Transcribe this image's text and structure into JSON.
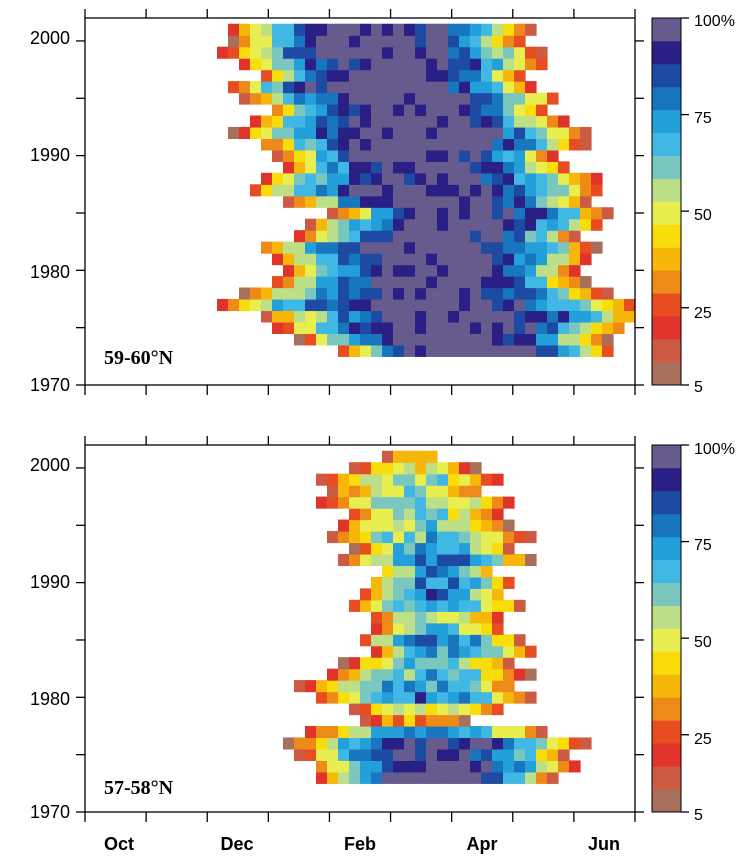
{
  "chart_data": [
    {
      "type": "heatmap",
      "panel_label": "59-60°N",
      "x_ticks": [
        "Oct",
        "Dec",
        "Feb",
        "Apr",
        "Jun"
      ],
      "y_ticks": [
        "1970",
        "1980",
        "1990",
        "2000"
      ],
      "ylim": [
        1970,
        2002
      ],
      "colorbar": {
        "ticks": [
          "5",
          "25",
          "50",
          "75",
          "100%"
        ],
        "range": [
          5,
          100
        ]
      },
      "rows": [
        {
          "year": 1973,
          "start": 4.1,
          "end": 8.7,
          "peak": 100
        },
        {
          "year": 1974,
          "start": 3.5,
          "end": 8.6,
          "peak": 98
        },
        {
          "year": 1975,
          "start": 3.1,
          "end": 8.9,
          "peak": 97
        },
        {
          "year": 1976,
          "start": 2.9,
          "end": 9.3,
          "peak": 96
        },
        {
          "year": 1977,
          "start": 2.1,
          "end": 9.1,
          "peak": 95
        },
        {
          "year": 1978,
          "start": 2.6,
          "end": 8.6,
          "peak": 94
        },
        {
          "year": 1979,
          "start": 3.0,
          "end": 8.2,
          "peak": 95
        },
        {
          "year": 1980,
          "start": 3.2,
          "end": 8.1,
          "peak": 96
        },
        {
          "year": 1981,
          "start": 3.0,
          "end": 8.3,
          "peak": 97
        },
        {
          "year": 1982,
          "start": 2.8,
          "end": 8.4,
          "peak": 98
        },
        {
          "year": 1983,
          "start": 3.4,
          "end": 8.1,
          "peak": 97
        },
        {
          "year": 1984,
          "start": 3.6,
          "end": 8.5,
          "peak": 95
        },
        {
          "year": 1985,
          "start": 4.0,
          "end": 8.6,
          "peak": 94
        },
        {
          "year": 1986,
          "start": 3.3,
          "end": 8.2,
          "peak": 97
        },
        {
          "year": 1987,
          "start": 2.6,
          "end": 8.5,
          "peak": 96
        },
        {
          "year": 1988,
          "start": 2.8,
          "end": 8.4,
          "peak": 92
        },
        {
          "year": 1989,
          "start": 3.2,
          "end": 8.0,
          "peak": 95
        },
        {
          "year": 1990,
          "start": 3.1,
          "end": 7.8,
          "peak": 97
        },
        {
          "year": 1991,
          "start": 2.8,
          "end": 8.2,
          "peak": 98
        },
        {
          "year": 1992,
          "start": 2.4,
          "end": 8.3,
          "peak": 96
        },
        {
          "year": 1993,
          "start": 2.7,
          "end": 7.9,
          "peak": 97
        },
        {
          "year": 1994,
          "start": 3.0,
          "end": 7.6,
          "peak": 98
        },
        {
          "year": 1995,
          "start": 2.6,
          "end": 7.8,
          "peak": 100
        },
        {
          "year": 1996,
          "start": 2.3,
          "end": 7.4,
          "peak": 97
        },
        {
          "year": 1997,
          "start": 2.8,
          "end": 7.2,
          "peak": 98
        },
        {
          "year": 1998,
          "start": 2.5,
          "end": 7.6,
          "peak": 96
        },
        {
          "year": 1999,
          "start": 2.2,
          "end": 7.5,
          "peak": 95
        },
        {
          "year": 2000,
          "start": 2.4,
          "end": 7.2,
          "peak": 96
        },
        {
          "year": 2001,
          "start": 2.3,
          "end": 7.3,
          "peak": 92
        }
      ]
    },
    {
      "type": "heatmap",
      "panel_label": "57-58°N",
      "x_ticks": [
        "Oct",
        "Dec",
        "Feb",
        "Apr",
        "Jun"
      ],
      "y_ticks": [
        "1970",
        "1980",
        "1990",
        "2000"
      ],
      "ylim": [
        1970,
        2002
      ],
      "colorbar": {
        "ticks": [
          "5",
          "25",
          "50",
          "75",
          "100%"
        ],
        "range": [
          5,
          100
        ]
      },
      "rows": [
        {
          "year": 1973,
          "start": 3.8,
          "end": 7.7,
          "peak": 95
        },
        {
          "year": 1974,
          "start": 3.7,
          "end": 8.1,
          "peak": 92
        },
        {
          "year": 1975,
          "start": 3.5,
          "end": 7.9,
          "peak": 90
        },
        {
          "year": 1976,
          "start": 3.3,
          "end": 8.2,
          "peak": 88
        },
        {
          "year": 1977,
          "start": 3.6,
          "end": 7.6,
          "peak": 70
        },
        {
          "year": 1978,
          "start": 4.5,
          "end": 6.3,
          "peak": 30
        },
        {
          "year": 1979,
          "start": 4.3,
          "end": 6.9,
          "peak": 50
        },
        {
          "year": 1980,
          "start": 3.7,
          "end": 7.3,
          "peak": 72
        },
        {
          "year": 1981,
          "start": 3.5,
          "end": 7.1,
          "peak": 68
        },
        {
          "year": 1982,
          "start": 3.9,
          "end": 7.3,
          "peak": 62
        },
        {
          "year": 1983,
          "start": 4.2,
          "end": 7.0,
          "peak": 60
        },
        {
          "year": 1984,
          "start": 4.6,
          "end": 7.4,
          "peak": 68
        },
        {
          "year": 1985,
          "start": 4.4,
          "end": 7.2,
          "peak": 74
        },
        {
          "year": 1986,
          "start": 4.7,
          "end": 6.9,
          "peak": 60
        },
        {
          "year": 1987,
          "start": 4.6,
          "end": 6.8,
          "peak": 56
        },
        {
          "year": 1988,
          "start": 4.3,
          "end": 7.2,
          "peak": 68
        },
        {
          "year": 1989,
          "start": 4.5,
          "end": 6.9,
          "peak": 74
        },
        {
          "year": 1990,
          "start": 4.6,
          "end": 7.1,
          "peak": 72
        },
        {
          "year": 1991,
          "start": 4.8,
          "end": 6.7,
          "peak": 70
        },
        {
          "year": 1992,
          "start": 4.2,
          "end": 7.3,
          "peak": 74
        },
        {
          "year": 1993,
          "start": 4.4,
          "end": 7.0,
          "peak": 66
        },
        {
          "year": 1994,
          "start": 4.0,
          "end": 7.3,
          "peak": 62
        },
        {
          "year": 1995,
          "start": 4.1,
          "end": 7.0,
          "peak": 58
        },
        {
          "year": 1996,
          "start": 4.3,
          "end": 6.8,
          "peak": 54
        },
        {
          "year": 1997,
          "start": 3.8,
          "end": 7.1,
          "peak": 56
        },
        {
          "year": 1998,
          "start": 3.9,
          "end": 6.6,
          "peak": 48
        },
        {
          "year": 1999,
          "start": 3.8,
          "end": 6.9,
          "peak": 52
        },
        {
          "year": 2000,
          "start": 4.3,
          "end": 6.4,
          "peak": 44
        },
        {
          "year": 2001,
          "start": 4.9,
          "end": 5.8,
          "peak": 38
        }
      ]
    }
  ]
}
